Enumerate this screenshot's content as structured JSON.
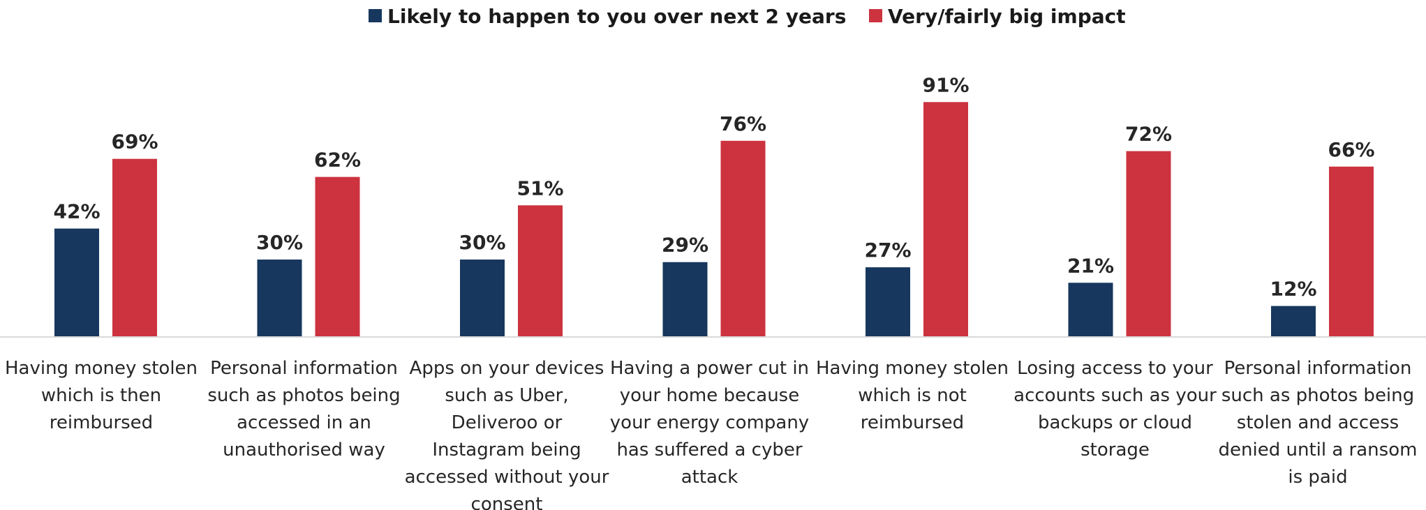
{
  "chart_data": {
    "type": "bar",
    "ylim": [
      0,
      100
    ],
    "grid": false,
    "legend_position": "top",
    "categories": [
      [
        "Having money stolen",
        "which is then",
        "reimbursed"
      ],
      [
        "Personal information",
        "such as photos being",
        "accessed in an",
        "unauthorised way"
      ],
      [
        "Apps on your devices",
        "such as Uber,",
        "Deliveroo or",
        "Instagram being",
        "accessed without your",
        "consent"
      ],
      [
        "Having a power cut in",
        "your home because",
        "your energy company",
        "has suffered a cyber",
        "attack"
      ],
      [
        "Having money stolen",
        "which is not",
        "reimbursed"
      ],
      [
        "Losing access to your",
        "accounts such as your",
        "backups or cloud",
        "storage"
      ],
      [
        "Personal information",
        "such as photos being",
        "stolen and access",
        "denied until a ransom",
        "is paid"
      ]
    ],
    "series": [
      {
        "name": "Likely to happen to you over next 2 years",
        "color": "#17375e",
        "values": [
          42,
          30,
          30,
          29,
          27,
          21,
          12
        ],
        "labels": [
          "42%",
          "30%",
          "30%",
          "29%",
          "27%",
          "21%",
          "12%"
        ]
      },
      {
        "name": "Very/fairly big impact",
        "color": "#cc333f",
        "values": [
          69,
          62,
          51,
          76,
          91,
          72,
          66
        ],
        "labels": [
          "69%",
          "62%",
          "51%",
          "76%",
          "91%",
          "72%",
          "66%"
        ]
      }
    ]
  }
}
